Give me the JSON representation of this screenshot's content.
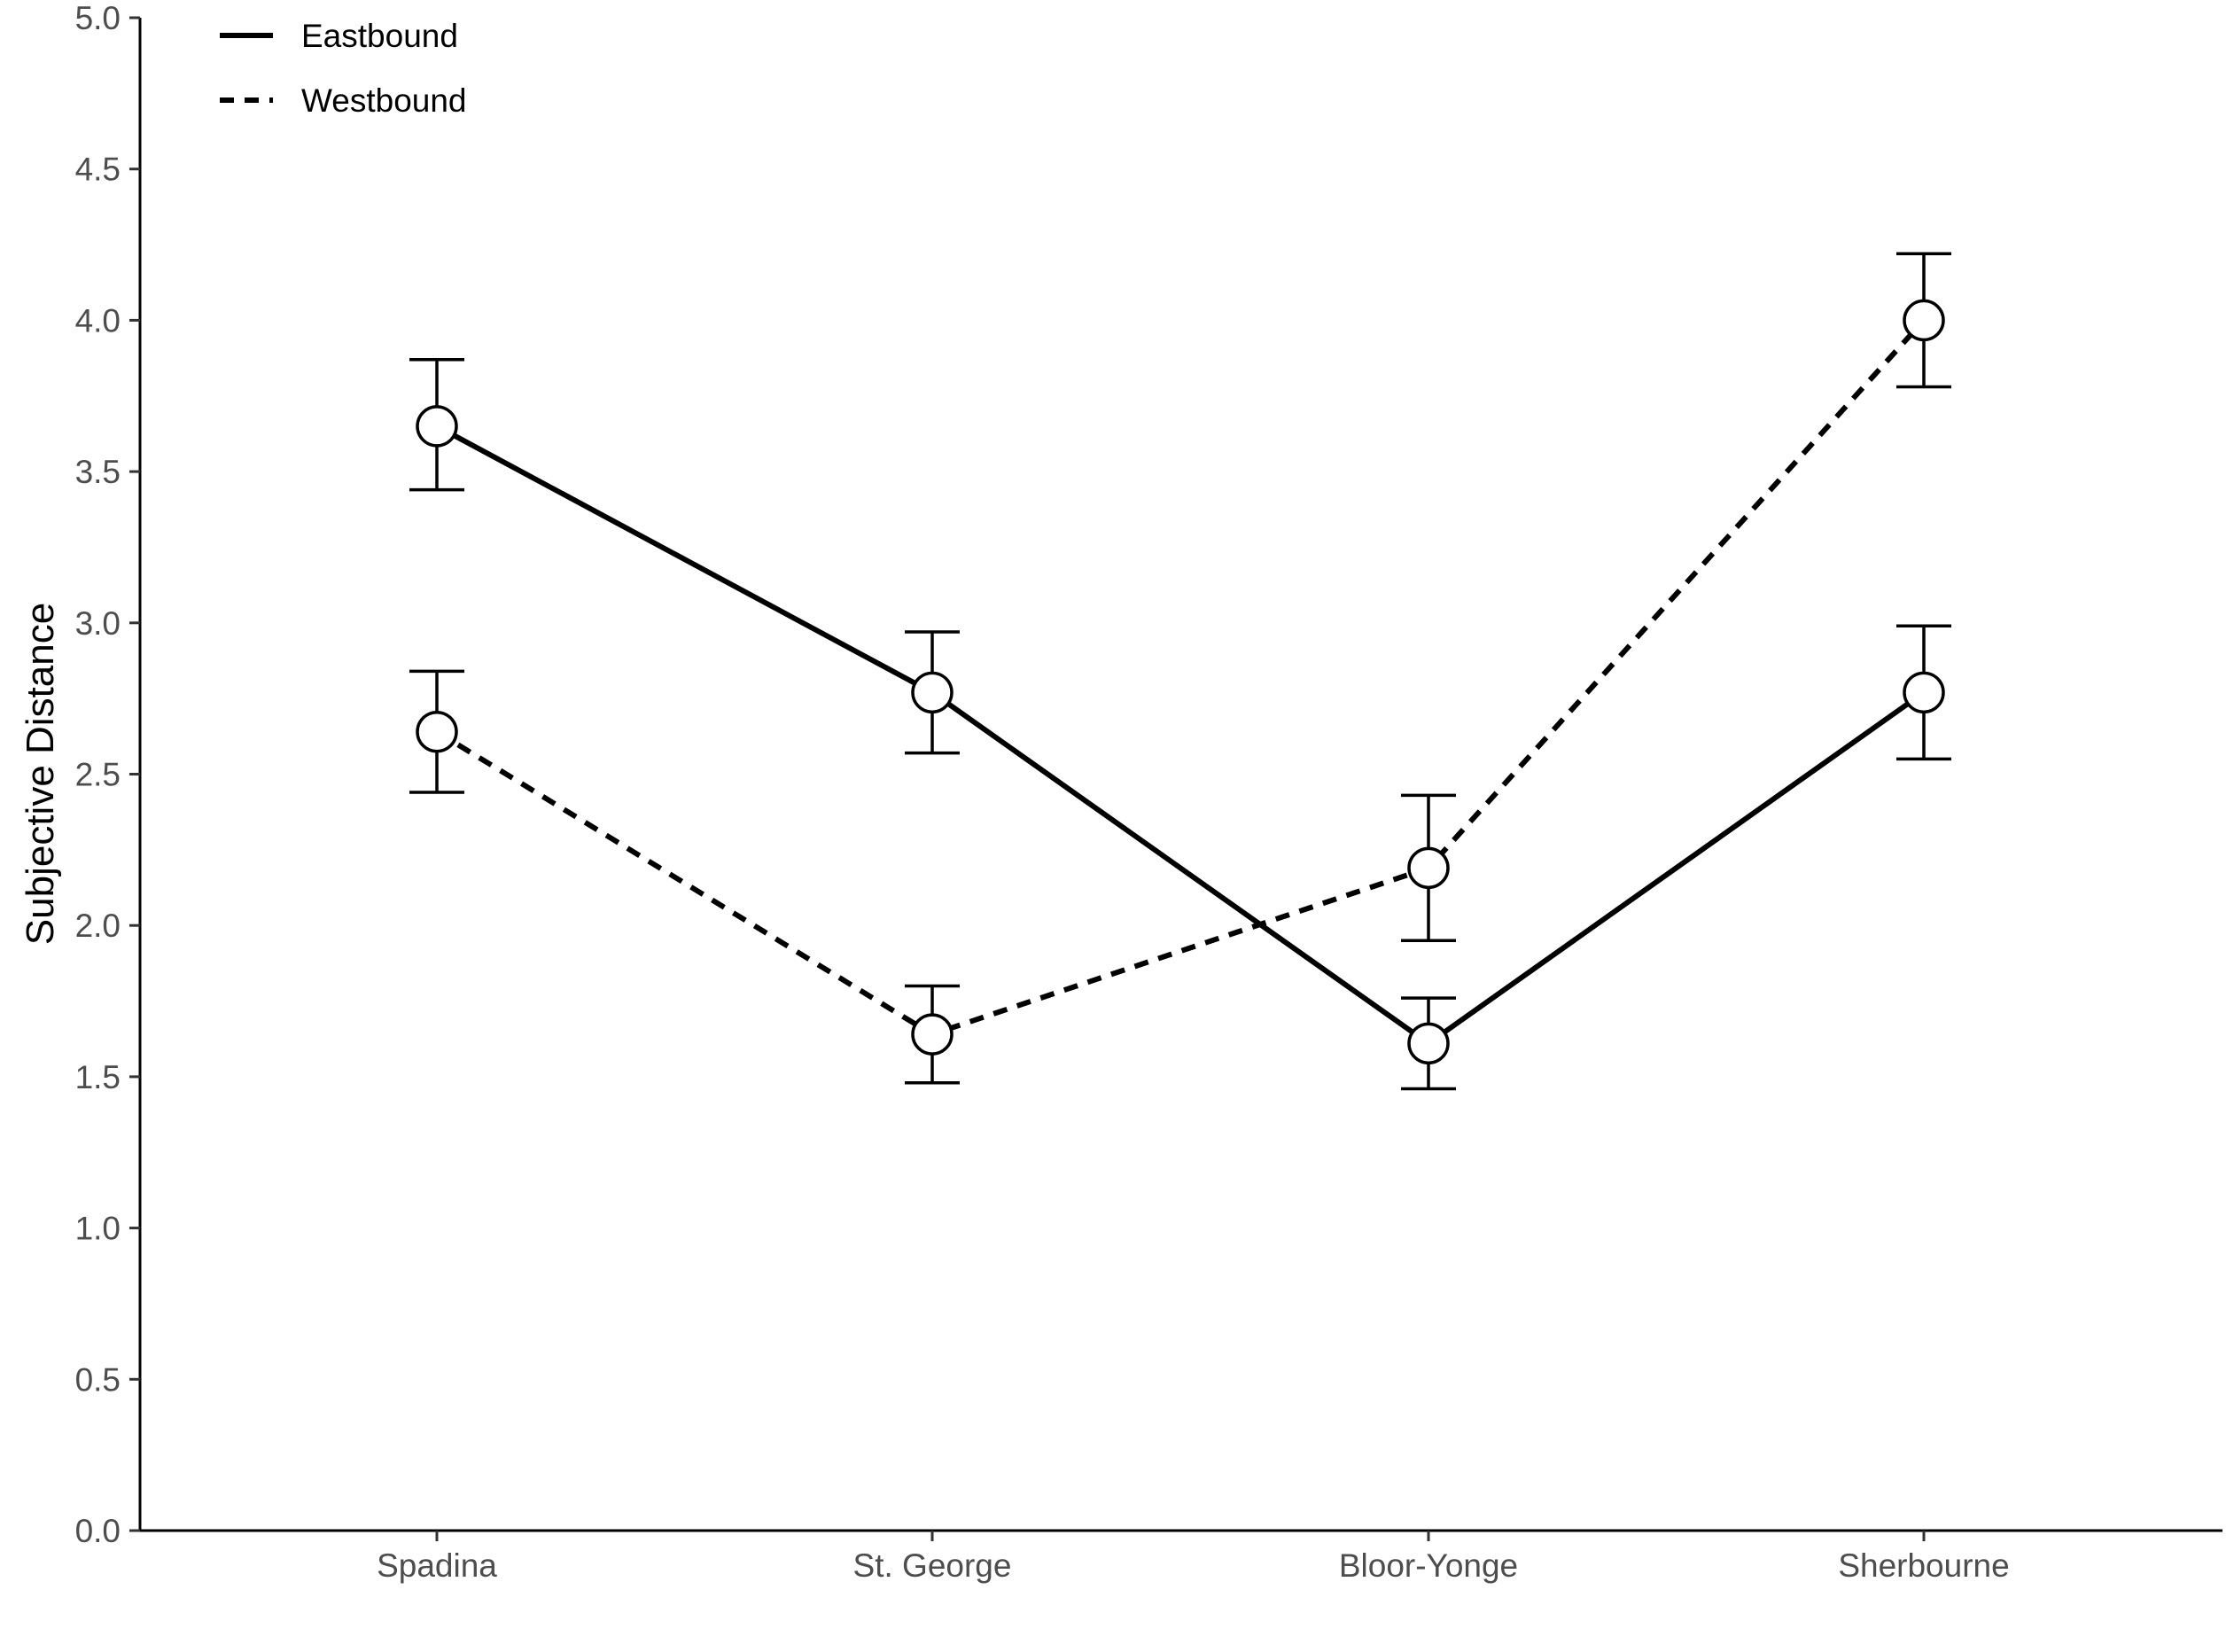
{
  "chart_data": {
    "type": "line",
    "title": "",
    "xlabel": "",
    "ylabel": "Subjective Distance",
    "categories": [
      "Spadina",
      "St. George",
      "Bloor-Yonge",
      "Sherbourne"
    ],
    "ylim": [
      0.0,
      5.0
    ],
    "yticks": [
      "0.0",
      "0.5",
      "1.0",
      "1.5",
      "2.0",
      "2.5",
      "3.0",
      "3.5",
      "4.0",
      "4.5",
      "5.0"
    ],
    "grid": false,
    "legend_position": "top-left",
    "series": [
      {
        "name": "Eastbound",
        "line_style": "solid",
        "values": [
          3.65,
          2.77,
          1.61,
          2.77
        ],
        "error_low": [
          3.44,
          2.57,
          1.46,
          2.55
        ],
        "error_high": [
          3.87,
          2.97,
          1.76,
          2.99
        ]
      },
      {
        "name": "Westbound",
        "line_style": "dashed",
        "values": [
          2.64,
          1.64,
          2.19,
          4.0
        ],
        "error_low": [
          2.44,
          1.48,
          1.95,
          3.78
        ],
        "error_high": [
          2.84,
          1.8,
          2.43,
          4.22
        ]
      }
    ],
    "colors": {
      "line": "#000000",
      "marker_fill": "#ffffff",
      "tick_label": "#4d4d4d"
    }
  }
}
